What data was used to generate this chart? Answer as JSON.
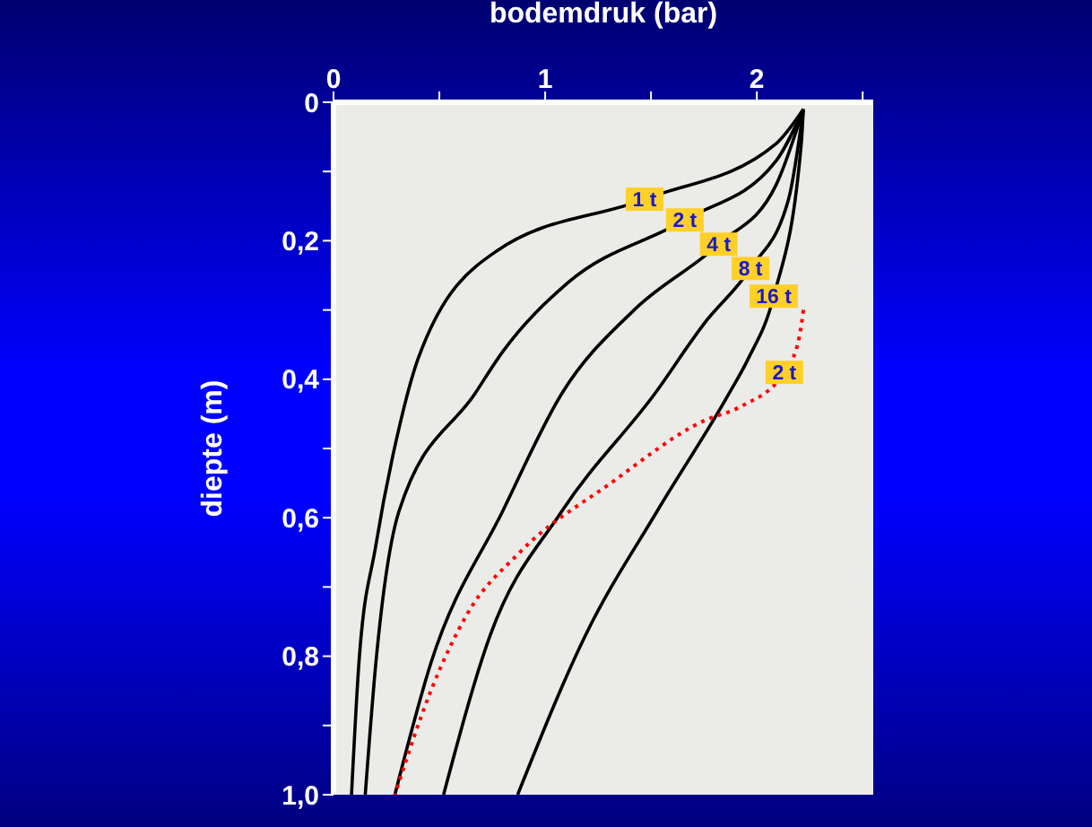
{
  "chart_data": {
    "type": "line",
    "xlabel": "bodemdruk (bar)",
    "ylabel": "diepte (m)",
    "xlim": [
      0,
      2.55
    ],
    "xticks": [
      0,
      {
        "value": 0.5,
        "label": null
      },
      1,
      {
        "value": 1.5,
        "label": null
      },
      2,
      {
        "value": 2.5,
        "label": null
      }
    ],
    "ylim": [
      1,
      0
    ],
    "yticks": [
      0,
      {
        "value": 0.1,
        "label": null
      },
      {
        "value": 0.2,
        "label": "0,2"
      },
      {
        "value": 0.3,
        "label": null
      },
      {
        "value": 0.4,
        "label": "0,4"
      },
      {
        "value": 0.5,
        "label": null
      },
      {
        "value": 0.6,
        "label": "0,6"
      },
      {
        "value": 0.7,
        "label": null
      },
      {
        "value": 0.8,
        "label": "0,8"
      },
      {
        "value": 0.9,
        "label": null
      },
      {
        "value": 1.0,
        "label": "1,0"
      }
    ],
    "grid": false,
    "legend": false,
    "marker": "none",
    "series": [
      {
        "name": "1 t",
        "color": "#000000",
        "line_style": "solid",
        "x": [
          2.22,
          2.09,
          1.47,
          0.77,
          0.4,
          0.31,
          0.2,
          0.12,
          0.085
        ],
        "values": [
          0.01,
          0.06,
          0.14,
          0.215,
          0.37,
          0.47,
          0.64,
          0.81,
          1.0
        ]
      },
      {
        "name": "2 t",
        "color": "#000000",
        "line_style": "solid",
        "x": [
          2.22,
          2.09,
          1.66,
          1.11,
          0.8,
          0.67,
          0.31,
          0.2,
          0.15
        ],
        "values": [
          0.01,
          0.085,
          0.17,
          0.26,
          0.36,
          0.42,
          0.59,
          0.81,
          1.0
        ]
      },
      {
        "name": "4 t",
        "color": "#000000",
        "line_style": "solid",
        "x": [
          2.22,
          2.09,
          1.82,
          1.42,
          1.08,
          0.8,
          0.46,
          0.29
        ],
        "values": [
          0.01,
          0.12,
          0.205,
          0.3,
          0.42,
          0.59,
          0.81,
          1.0
        ]
      },
      {
        "name": "8 t",
        "color": "#000000",
        "line_style": "solid",
        "x": [
          2.22,
          2.15,
          1.97,
          1.75,
          1.52,
          1.08,
          0.74,
          0.52
        ],
        "values": [
          0.01,
          0.14,
          0.24,
          0.32,
          0.42,
          0.59,
          0.77,
          1.0
        ]
      },
      {
        "name": "16 t",
        "color": "#000000",
        "line_style": "solid",
        "x": [
          2.22,
          2.21,
          2.08,
          1.96,
          1.87,
          1.53,
          1.19,
          0.87
        ],
        "values": [
          0.01,
          0.06,
          0.28,
          0.37,
          0.42,
          0.59,
          0.77,
          1.0
        ]
      },
      {
        "name": "2 t",
        "color": "#ff0000",
        "line_style": "dotted",
        "x": [
          2.22,
          2.2,
          2.13,
          1.92,
          1.75,
          1.31,
          0.88,
          0.63,
          0.46,
          0.29
        ],
        "values": [
          0.3,
          0.34,
          0.39,
          0.44,
          0.46,
          0.55,
          0.65,
          0.74,
          0.85,
          1.0
        ]
      }
    ]
  }
}
